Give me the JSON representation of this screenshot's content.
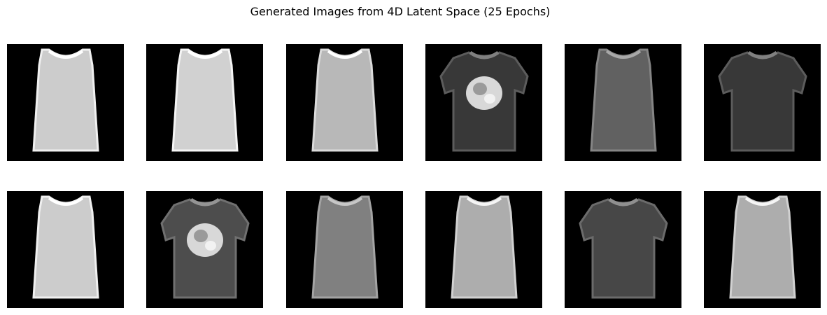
{
  "figure": {
    "title": "Generated Images from 4D Latent Space (25 Epochs)"
  },
  "grid": {
    "rows": 2,
    "cols": 6,
    "images": [
      {
        "garment": "sleeveless-top",
        "brightness": 0.8,
        "sleeves": false,
        "print": false
      },
      {
        "garment": "sleeveless-top",
        "brightness": 0.82,
        "sleeves": false,
        "print": false
      },
      {
        "garment": "sleeveless-top",
        "brightness": 0.72,
        "sleeves": false,
        "print": false
      },
      {
        "garment": "t-shirt",
        "brightness": 0.22,
        "sleeves": true,
        "print": true
      },
      {
        "garment": "sleeveless-top",
        "brightness": 0.38,
        "sleeves": false,
        "print": false
      },
      {
        "garment": "t-shirt",
        "brightness": 0.22,
        "sleeves": true,
        "print": false
      },
      {
        "garment": "sleeveless-top",
        "brightness": 0.8,
        "sleeves": false,
        "print": false
      },
      {
        "garment": "t-shirt",
        "brightness": 0.3,
        "sleeves": true,
        "print": true
      },
      {
        "garment": "sleeveless-top",
        "brightness": 0.5,
        "sleeves": false,
        "print": false
      },
      {
        "garment": "sleeveless-top",
        "brightness": 0.68,
        "sleeves": false,
        "print": false
      },
      {
        "garment": "t-shirt",
        "brightness": 0.28,
        "sleeves": true,
        "print": false
      },
      {
        "garment": "sleeveless-top",
        "brightness": 0.68,
        "sleeves": false,
        "print": false
      }
    ]
  }
}
